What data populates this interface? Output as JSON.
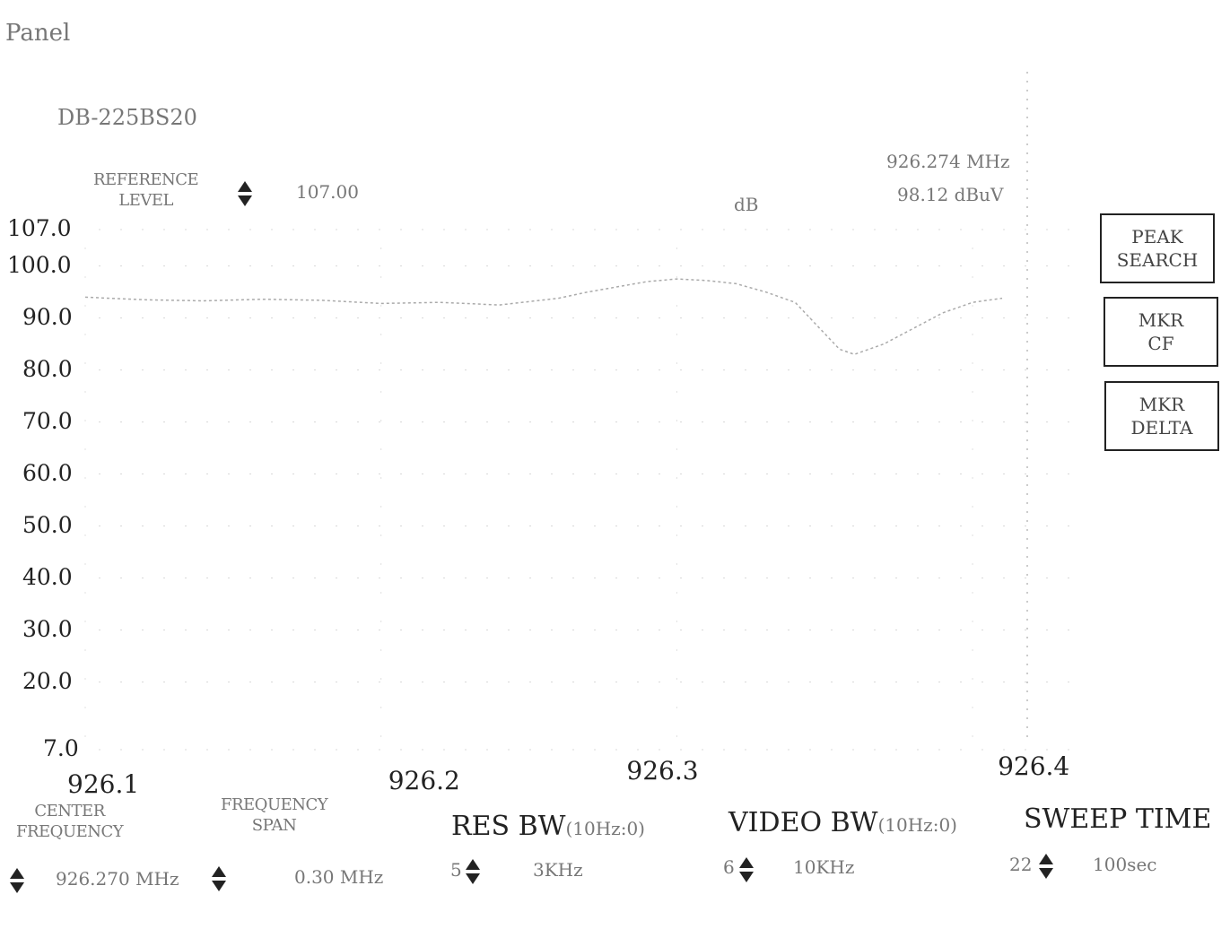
{
  "window": {
    "title": "Panel"
  },
  "device": {
    "model": "DB-225BS20"
  },
  "reference_level": {
    "label_line1": "REFERENCE",
    "label_line2": "LEVEL",
    "value": "107.00",
    "unit": "dB"
  },
  "marker_readout": {
    "frequency": "926.274 MHz",
    "level": "98.12 dBuV"
  },
  "buttons": {
    "peak_search": {
      "line1": "PEAK",
      "line2": "SEARCH"
    },
    "mkr_cf": {
      "line1": "MKR",
      "line2": "CF"
    },
    "mkr_delta": {
      "line1": "MKR",
      "line2": "DELTA"
    }
  },
  "controls": {
    "center_frequency": {
      "line1": "CENTER",
      "line2": "FREQUENCY",
      "value": "926.270 MHz"
    },
    "frequency_span": {
      "line1": "FREQUENCY",
      "line2": "SPAN",
      "value": "0.30 MHz"
    },
    "res_bw": {
      "label": "RES BW",
      "sub": "(10Hz:0)",
      "index": "5",
      "value": "3KHz"
    },
    "video_bw": {
      "label": "VIDEO BW",
      "sub": "(10Hz:0)",
      "index": "6",
      "value": "10KHz"
    },
    "sweep_time": {
      "label": "SWEEP TIME",
      "index": "22",
      "value": "100sec"
    }
  },
  "chart_data": {
    "type": "line",
    "ylim": [
      7.0,
      107.0
    ],
    "xlim": [
      926.1,
      926.42
    ],
    "y_ticks": [
      "107.0",
      "100.0",
      "90.0",
      "80.0",
      "70.0",
      "60.0",
      "50.0",
      "40.0",
      "30.0",
      "20.0",
      "7.0"
    ],
    "x_ticks": [
      "926.1",
      "926.2",
      "926.3",
      "926.4"
    ],
    "x_tick_values": [
      926.1,
      926.2,
      926.3,
      926.4
    ],
    "y_tick_values": [
      107,
      100,
      90,
      80,
      70,
      60,
      50,
      40,
      30,
      20,
      7
    ],
    "series": [
      {
        "x": [
          926.1,
          926.12,
          926.14,
          926.16,
          926.18,
          926.2,
          926.22,
          926.24,
          926.26,
          926.27,
          926.28,
          926.29,
          926.3,
          926.31,
          926.32,
          926.33,
          926.34,
          926.35,
          926.355,
          926.36,
          926.37,
          926.38,
          926.39,
          926.4,
          926.41
        ],
        "y": [
          94,
          93.5,
          93.3,
          93.6,
          93.4,
          92.8,
          93,
          92.5,
          93.8,
          95,
          96,
          97,
          97.5,
          97.2,
          96.6,
          95,
          93,
          87,
          84,
          83,
          85,
          88,
          91,
          93,
          93.8
        ]
      }
    ]
  }
}
